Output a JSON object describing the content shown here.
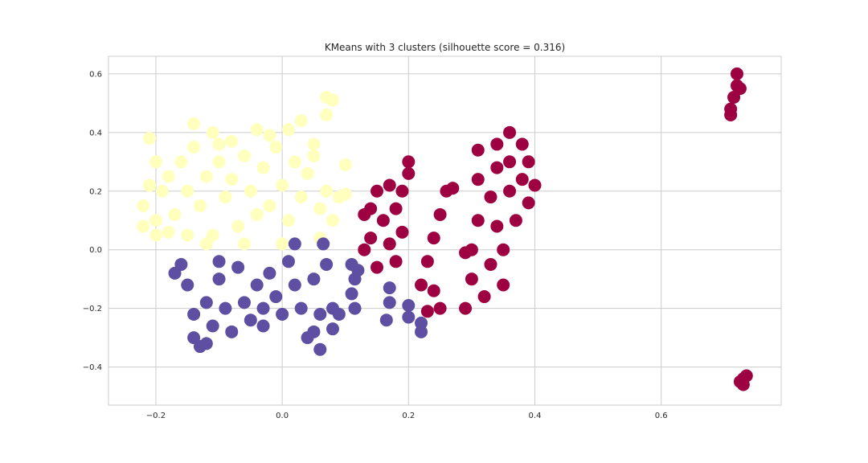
{
  "chart_data": {
    "type": "scatter",
    "title": "KMeans with 3 clusters (silhouette score = 0.316)",
    "xlabel": "",
    "ylabel": "",
    "xlim": [
      -0.275,
      0.79
    ],
    "ylim": [
      -0.53,
      0.66
    ],
    "xticks": [
      -0.2,
      0.0,
      0.2,
      0.4,
      0.6
    ],
    "xtick_labels": [
      "−0.2",
      "0.0",
      "0.2",
      "0.4",
      "0.6"
    ],
    "yticks": [
      -0.4,
      -0.2,
      0.0,
      0.2,
      0.4,
      0.6
    ],
    "ytick_labels": [
      "−0.4",
      "−0.2",
      "0.0",
      "0.2",
      "0.4",
      "0.6"
    ],
    "grid": true,
    "style": "whitegrid",
    "series": [
      {
        "color": "#ffffbe",
        "points": [
          [
            -0.22,
            0.15
          ],
          [
            -0.21,
            0.22
          ],
          [
            -0.2,
            0.3
          ],
          [
            -0.2,
            0.1
          ],
          [
            -0.19,
            0.2
          ],
          [
            -0.18,
            0.25
          ],
          [
            -0.17,
            0.12
          ],
          [
            -0.16,
            0.3
          ],
          [
            -0.15,
            0.2
          ],
          [
            -0.14,
            0.35
          ],
          [
            -0.13,
            0.15
          ],
          [
            -0.12,
            0.25
          ],
          [
            -0.11,
            0.05
          ],
          [
            -0.1,
            0.3
          ],
          [
            -0.09,
            0.18
          ],
          [
            -0.08,
            0.24
          ],
          [
            -0.07,
            0.08
          ],
          [
            -0.06,
            0.32
          ],
          [
            -0.05,
            0.2
          ],
          [
            -0.04,
            0.12
          ],
          [
            -0.03,
            0.28
          ],
          [
            -0.02,
            0.15
          ],
          [
            -0.01,
            0.35
          ],
          [
            0.0,
            0.22
          ],
          [
            0.01,
            0.1
          ],
          [
            0.02,
            0.3
          ],
          [
            0.03,
            0.18
          ],
          [
            0.04,
            0.26
          ],
          [
            0.05,
            0.36
          ],
          [
            0.06,
            0.14
          ],
          [
            0.07,
            0.2
          ],
          [
            0.08,
            0.1
          ],
          [
            0.09,
            0.18
          ],
          [
            -0.21,
            0.38
          ],
          [
            -0.14,
            0.43
          ],
          [
            -0.11,
            0.4
          ],
          [
            -0.04,
            0.41
          ],
          [
            -0.02,
            0.39
          ],
          [
            0.01,
            0.41
          ],
          [
            0.03,
            0.44
          ],
          [
            0.07,
            0.52
          ],
          [
            0.08,
            0.51
          ],
          [
            0.07,
            0.46
          ],
          [
            -0.12,
            0.02
          ],
          [
            -0.18,
            0.06
          ],
          [
            0.1,
            0.29
          ],
          [
            0.1,
            0.19
          ],
          [
            -0.1,
            0.36
          ],
          [
            0.06,
            0.04
          ],
          [
            0.0,
            0.02
          ],
          [
            -0.06,
            0.02
          ],
          [
            -0.15,
            0.05
          ],
          [
            -0.2,
            0.05
          ],
          [
            -0.22,
            0.08
          ],
          [
            0.05,
            0.32
          ],
          [
            -0.08,
            0.37
          ]
        ]
      },
      {
        "color": "#5e4fa2",
        "points": [
          [
            -0.17,
            -0.08
          ],
          [
            -0.15,
            -0.12
          ],
          [
            -0.14,
            -0.22
          ],
          [
            -0.14,
            -0.3
          ],
          [
            -0.13,
            -0.33
          ],
          [
            -0.12,
            -0.18
          ],
          [
            -0.11,
            -0.26
          ],
          [
            -0.1,
            -0.1
          ],
          [
            -0.09,
            -0.2
          ],
          [
            -0.08,
            -0.28
          ],
          [
            -0.07,
            -0.06
          ],
          [
            -0.06,
            -0.18
          ],
          [
            -0.05,
            -0.24
          ],
          [
            -0.04,
            -0.12
          ],
          [
            -0.03,
            -0.2
          ],
          [
            -0.02,
            -0.08
          ],
          [
            -0.01,
            -0.16
          ],
          [
            0.0,
            -0.22
          ],
          [
            0.01,
            -0.04
          ],
          [
            0.02,
            -0.12
          ],
          [
            0.03,
            -0.2
          ],
          [
            0.04,
            -0.3
          ],
          [
            0.05,
            -0.1
          ],
          [
            0.06,
            -0.22
          ],
          [
            0.06,
            -0.34
          ],
          [
            0.07,
            -0.05
          ],
          [
            0.08,
            -0.2
          ],
          [
            0.08,
            -0.27
          ],
          [
            0.09,
            -0.22
          ],
          [
            0.065,
            0.02
          ],
          [
            0.02,
            0.02
          ],
          [
            -0.1,
            -0.04
          ],
          [
            0.11,
            -0.05
          ],
          [
            0.115,
            -0.1
          ],
          [
            0.11,
            -0.15
          ],
          [
            0.12,
            -0.07
          ],
          [
            0.115,
            -0.2
          ],
          [
            0.17,
            -0.13
          ],
          [
            0.17,
            -0.18
          ],
          [
            0.165,
            -0.24
          ],
          [
            0.2,
            -0.19
          ],
          [
            0.2,
            -0.23
          ],
          [
            0.22,
            -0.25
          ],
          [
            0.22,
            -0.28
          ],
          [
            -0.12,
            -0.32
          ],
          [
            -0.16,
            -0.05
          ],
          [
            0.05,
            -0.28
          ],
          [
            -0.03,
            -0.26
          ]
        ]
      },
      {
        "color": "#9e0142",
        "points": [
          [
            0.13,
            0.0
          ],
          [
            0.14,
            0.04
          ],
          [
            0.14,
            0.14
          ],
          [
            0.15,
            0.2
          ],
          [
            0.16,
            0.1
          ],
          [
            0.17,
            0.02
          ],
          [
            0.17,
            0.22
          ],
          [
            0.18,
            0.14
          ],
          [
            0.18,
            -0.04
          ],
          [
            0.19,
            0.06
          ],
          [
            0.19,
            0.2
          ],
          [
            0.2,
            0.26
          ],
          [
            0.2,
            0.3
          ],
          [
            0.15,
            -0.06
          ],
          [
            0.13,
            0.12
          ],
          [
            0.22,
            -0.12
          ],
          [
            0.23,
            -0.04
          ],
          [
            0.24,
            0.04
          ],
          [
            0.25,
            0.12
          ],
          [
            0.26,
            0.2
          ],
          [
            0.25,
            -0.2
          ],
          [
            0.24,
            -0.14
          ],
          [
            0.23,
            -0.21
          ],
          [
            0.27,
            0.21
          ],
          [
            0.29,
            -0.2
          ],
          [
            0.3,
            -0.1
          ],
          [
            0.3,
            0.0
          ],
          [
            0.31,
            0.1
          ],
          [
            0.31,
            0.24
          ],
          [
            0.32,
            -0.16
          ],
          [
            0.33,
            -0.05
          ],
          [
            0.33,
            0.18
          ],
          [
            0.34,
            0.08
          ],
          [
            0.34,
            0.28
          ],
          [
            0.35,
            -0.12
          ],
          [
            0.35,
            0.0
          ],
          [
            0.36,
            0.2
          ],
          [
            0.36,
            0.3
          ],
          [
            0.37,
            0.1
          ],
          [
            0.38,
            0.24
          ],
          [
            0.38,
            0.36
          ],
          [
            0.39,
            0.16
          ],
          [
            0.39,
            0.3
          ],
          [
            0.36,
            0.4
          ],
          [
            0.31,
            0.34
          ],
          [
            0.34,
            0.36
          ],
          [
            0.29,
            -0.01
          ],
          [
            0.4,
            0.22
          ],
          [
            0.72,
            0.6
          ],
          [
            0.72,
            0.56
          ],
          [
            0.715,
            0.52
          ],
          [
            0.71,
            0.48
          ],
          [
            0.71,
            0.46
          ],
          [
            0.725,
            0.55
          ],
          [
            0.73,
            -0.44
          ],
          [
            0.73,
            -0.46
          ],
          [
            0.735,
            -0.43
          ],
          [
            0.725,
            -0.45
          ]
        ]
      }
    ]
  }
}
